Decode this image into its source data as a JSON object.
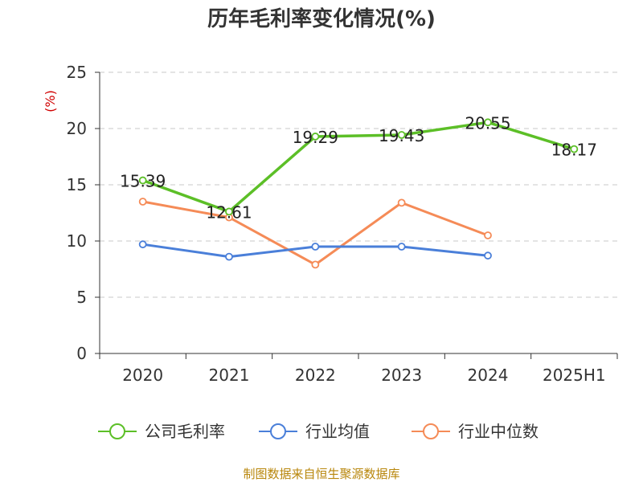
{
  "chart_data": {
    "type": "line",
    "title": "历年毛利率变化情况(%)",
    "ylabel": "(%)",
    "categories": [
      "2020",
      "2021",
      "2022",
      "2023",
      "2024",
      "2025H1"
    ],
    "ylim": [
      0,
      25
    ],
    "yticks": [
      0,
      5,
      10,
      15,
      20,
      25
    ],
    "grid": true,
    "legend_position": "bottom",
    "series": [
      {
        "name": "公司毛利率",
        "color": "#5cbf27",
        "values": [
          15.39,
          12.61,
          19.29,
          19.43,
          20.55,
          18.17
        ],
        "labels": [
          "15.39",
          "12.61",
          "19.29",
          "19.43",
          "20.55",
          "18.17"
        ]
      },
      {
        "name": "行业均值",
        "color": "#4a7fd9",
        "values": [
          9.7,
          8.6,
          9.5,
          9.5,
          8.7,
          null
        ],
        "labels": []
      },
      {
        "name": "行业中位数",
        "color": "#f58b57",
        "values": [
          13.5,
          12.1,
          7.9,
          13.4,
          10.5,
          null
        ],
        "labels": []
      }
    ]
  },
  "source": "制图数据来自恒生聚源数据库"
}
